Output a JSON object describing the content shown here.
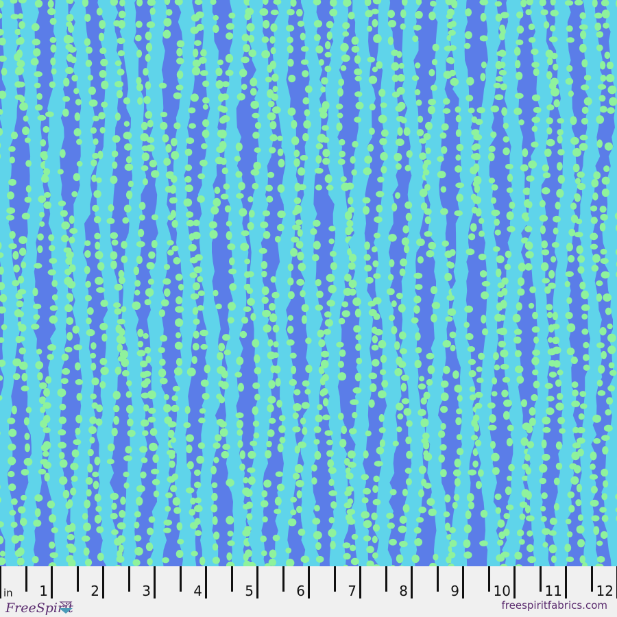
{
  "fabric": {
    "colors": {
      "background": "#5b7de8",
      "stripe": "#5fd4ea",
      "dot": "#8ff29c"
    },
    "pattern": "wavy vertical stripes with dots"
  },
  "ruler": {
    "unit": "in",
    "numbers": [
      "1",
      "2",
      "3",
      "4",
      "5",
      "6",
      "7",
      "8",
      "9",
      "10",
      "11",
      "12"
    ]
  },
  "branding": {
    "logo": "FreeSpirit",
    "website": "freespiritfabrics.com"
  }
}
